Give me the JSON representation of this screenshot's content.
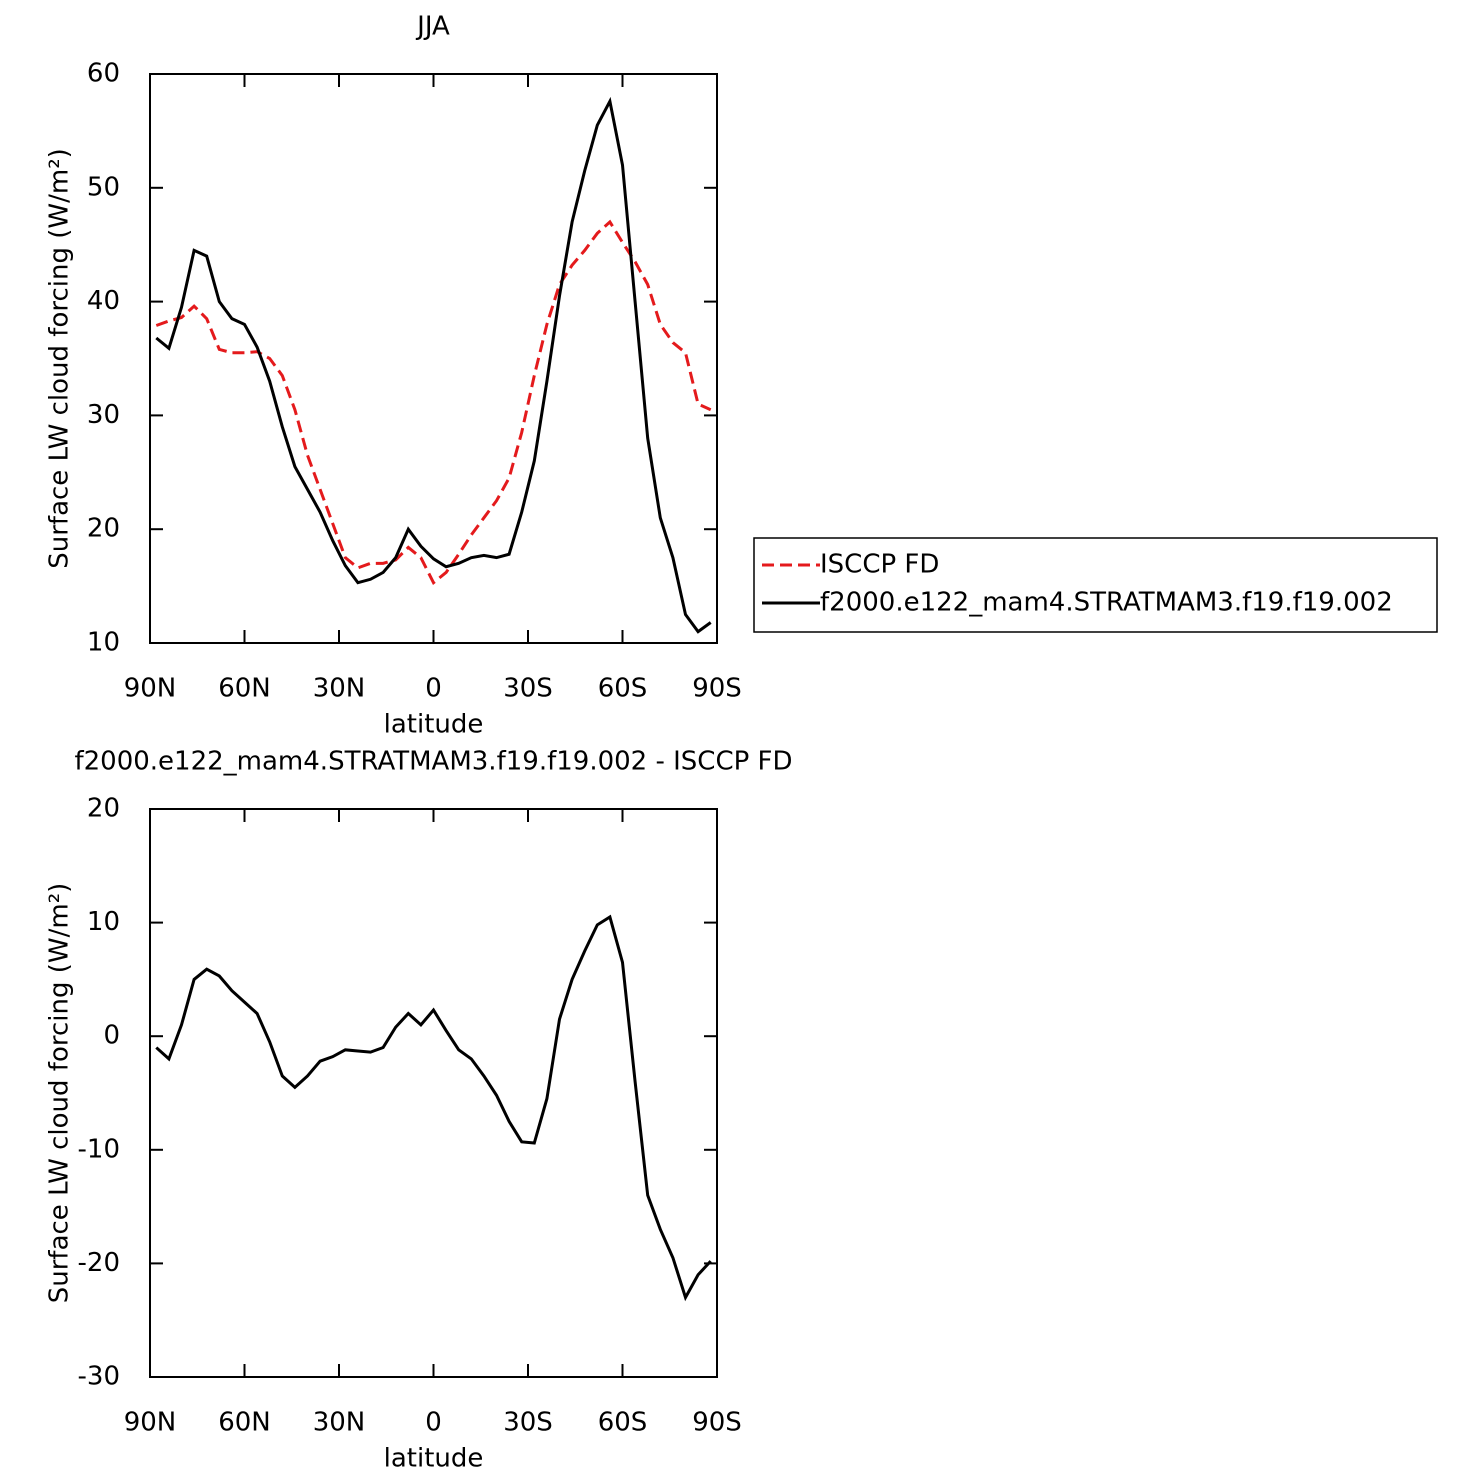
{
  "chart_data": [
    {
      "type": "line",
      "title": "JJA",
      "xlabel": "latitude",
      "ylabel": "Surface LW cloud forcing (W/m²)",
      "x": [
        88,
        84,
        80,
        76,
        72,
        68,
        64,
        60,
        56,
        52,
        48,
        44,
        40,
        36,
        32,
        28,
        24,
        20,
        16,
        12,
        8,
        4,
        0,
        -4,
        -8,
        -12,
        -16,
        -20,
        -24,
        -28,
        -32,
        -36,
        -40,
        -44,
        -48,
        -52,
        -56,
        -60,
        -64,
        -68,
        -72,
        -76,
        -80,
        -84,
        -88
      ],
      "series": [
        {
          "name": "ISCCP FD",
          "color": "#e41a1c",
          "dash": true,
          "values": [
            37.9,
            38.3,
            38.6,
            39.6,
            38.5,
            35.8,
            35.5,
            35.5,
            35.6,
            35.0,
            33.5,
            30.5,
            26.5,
            23.5,
            20.5,
            17.5,
            16.6,
            17.0,
            17.0,
            17.3,
            18.4,
            17.5,
            15.3,
            16.2,
            17.8,
            19.5,
            21.0,
            22.5,
            24.5,
            28.5,
            33.5,
            38.0,
            41.5,
            43.2,
            44.5,
            46.0,
            47.0,
            45.2,
            43.5,
            41.5,
            38.0,
            36.4,
            35.5,
            31.0,
            30.5
          ]
        },
        {
          "name": "f2000.e122_mam4.STRATMAM3.f19.f19.002",
          "color": "#000000",
          "dash": false,
          "values": [
            36.8,
            35.9,
            39.5,
            44.5,
            44.0,
            40.0,
            38.5,
            38.0,
            36.0,
            33.0,
            29.0,
            25.5,
            23.5,
            21.5,
            19.0,
            16.8,
            15.3,
            15.6,
            16.2,
            17.5,
            20.0,
            18.5,
            17.4,
            16.7,
            17.0,
            17.5,
            17.7,
            17.5,
            17.8,
            21.5,
            26.0,
            33.0,
            40.5,
            47.0,
            51.5,
            55.5,
            57.6,
            52.0,
            40.0,
            28.0,
            21.0,
            17.5,
            12.5,
            11.0,
            11.8
          ]
        }
      ],
      "xlim": [
        90,
        -90
      ],
      "xticks": [
        {
          "value": 90,
          "label": "90N"
        },
        {
          "value": 60,
          "label": "60N"
        },
        {
          "value": 30,
          "label": "30N"
        },
        0,
        {
          "value": -30,
          "label": "30S"
        },
        {
          "value": -60,
          "label": "60S"
        },
        {
          "value": -90,
          "label": "90S"
        }
      ],
      "ylim": [
        10,
        60
      ],
      "yticks": [
        10,
        20,
        30,
        40,
        50,
        60
      ],
      "legend": "right"
    },
    {
      "type": "line",
      "title": "f2000.e122_mam4.STRATMAM3.f19.f19.002 - ISCCP FD",
      "xlabel": "latitude",
      "ylabel": "Surface LW cloud forcing (W/m²)",
      "x": [
        88,
        84,
        80,
        76,
        72,
        68,
        64,
        60,
        56,
        52,
        48,
        44,
        40,
        36,
        32,
        28,
        24,
        20,
        16,
        12,
        8,
        4,
        0,
        -4,
        -8,
        -12,
        -16,
        -20,
        -24,
        -28,
        -32,
        -36,
        -40,
        -44,
        -48,
        -52,
        -56,
        -60,
        -64,
        -68,
        -72,
        -76,
        -80,
        -84,
        -88
      ],
      "series": [
        {
          "color": "#000000",
          "dash": false,
          "values": [
            -1.0,
            -2.0,
            1.0,
            5.0,
            5.9,
            5.3,
            4.0,
            3.0,
            2.0,
            -0.5,
            -3.5,
            -4.5,
            -3.5,
            -2.2,
            -1.8,
            -1.2,
            -1.3,
            -1.4,
            -1.0,
            0.8,
            2.0,
            1.0,
            2.3,
            0.5,
            -1.2,
            -2.0,
            -3.5,
            -5.2,
            -7.5,
            -9.3,
            -9.4,
            -5.5,
            1.5,
            5.0,
            7.5,
            9.8,
            10.5,
            6.5,
            -4.0,
            -14.0,
            -17.0,
            -19.5,
            -23.0,
            -21.0,
            -19.8
          ]
        }
      ],
      "xlim": [
        90,
        -90
      ],
      "xticks": [
        {
          "value": 90,
          "label": "90N"
        },
        {
          "value": 60,
          "label": "60N"
        },
        {
          "value": 30,
          "label": "30N"
        },
        0,
        {
          "value": -30,
          "label": "30S"
        },
        {
          "value": -60,
          "label": "60S"
        },
        {
          "value": -90,
          "label": "90S"
        }
      ],
      "ylim": [
        -30,
        20
      ],
      "yticks": [
        -30,
        -20,
        -10,
        0,
        10,
        20
      ]
    }
  ]
}
